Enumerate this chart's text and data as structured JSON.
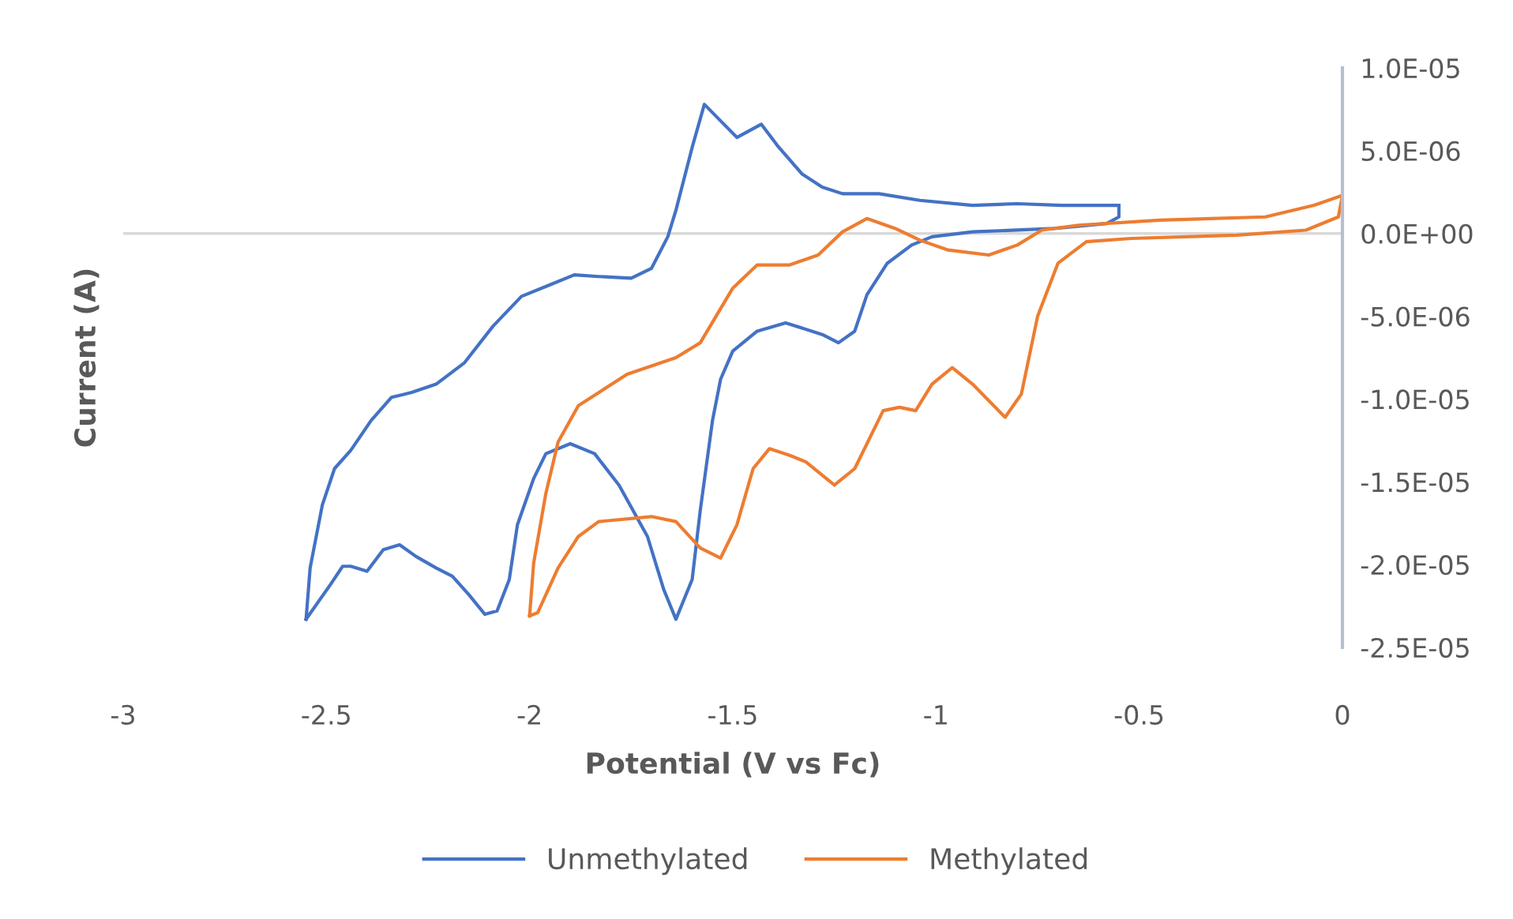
{
  "chart_data": {
    "type": "line",
    "xlabel": "Potential (V vs Fc)",
    "ylabel": "Current (A)",
    "xlim": [
      -3,
      0
    ],
    "xticks": [
      -3,
      -2.5,
      -2,
      -1.5,
      -1,
      -0.5,
      0
    ],
    "ylim": [
      -2.5e-05,
      1e-05
    ],
    "yticks": [
      {
        "value": 1e-05,
        "label": "1.0E-05"
      },
      {
        "value": 5e-06,
        "label": "5.0E-06"
      },
      {
        "value": 0,
        "label": "0.0E+00"
      },
      {
        "value": -5e-06,
        "label": "-5.0E-06"
      },
      {
        "value": -1e-05,
        "label": "-1.0E-05"
      },
      {
        "value": -1.5e-05,
        "label": "-1.5E-05"
      },
      {
        "value": -2e-05,
        "label": "-2.0E-05"
      },
      {
        "value": -2.5e-05,
        "label": "-2.5E-05"
      }
    ],
    "legend": "bottom",
    "ref_lines": [
      {
        "axis": "y",
        "value": 0,
        "color": "#d9d9d9"
      }
    ],
    "series": [
      {
        "name": "Unmethylated",
        "color": "#4472c4",
        "x": [
          -0.55,
          -0.55,
          -0.58,
          -0.71,
          -0.91,
          -1.01,
          -1.06,
          -1.12,
          -1.17,
          -1.2,
          -1.24,
          -1.28,
          -1.37,
          -1.44,
          -1.5,
          -1.53,
          -1.55,
          -1.58,
          -1.6,
          -1.64,
          -1.67,
          -1.71,
          -1.78,
          -1.84,
          -1.9,
          -1.96,
          -1.99,
          -2.03,
          -2.05,
          -2.08,
          -2.11,
          -2.15,
          -2.19,
          -2.23,
          -2.28,
          -2.32,
          -2.36,
          -2.4,
          -2.44,
          -2.46,
          -2.49,
          -2.55
        ],
        "values": [
          1.7e-06,
          1e-06,
          6e-07,
          3e-07,
          1e-07,
          -2e-07,
          -7e-07,
          -1.8e-06,
          -3.7e-06,
          -5.9e-06,
          -6.6e-06,
          -6.1e-06,
          -5.4e-06,
          -5.9e-06,
          -7.1e-06,
          -8.8e-06,
          -1.13e-05,
          -1.67e-05,
          -2.09e-05,
          -2.33e-05,
          -2.15e-05,
          -1.83e-05,
          -1.52e-05,
          -1.33e-05,
          -1.27e-05,
          -1.33e-05,
          -1.48e-05,
          -1.76e-05,
          -2.09e-05,
          -2.28e-05,
          -2.3e-05,
          -2.18e-05,
          -2.07e-05,
          -2.02e-05,
          -1.95e-05,
          -1.88e-05,
          -1.91e-05,
          -2.04e-05,
          -2.01e-05,
          -2.01e-05,
          -2.12e-05,
          -2.33e-05
        ]
      },
      {
        "color": "#4472c4",
        "x": [
          -2.55,
          -2.54,
          -2.51,
          -2.48,
          -2.44,
          -2.39,
          -2.34,
          -2.29,
          -2.23,
          -2.16,
          -2.09,
          -2.02,
          -1.95,
          -1.89,
          -1.83,
          -1.75,
          -1.7,
          -1.66,
          -1.64,
          -1.6,
          -1.57,
          -1.53,
          -1.49,
          -1.43,
          -1.39,
          -1.33,
          -1.28,
          -1.23,
          -1.14,
          -1.04,
          -0.91,
          -0.8,
          -0.69,
          -0.55
        ],
        "values": [
          -2.33e-05,
          -2.02e-05,
          -1.64e-05,
          -1.42e-05,
          -1.31e-05,
          -1.13e-05,
          -9.9e-06,
          -9.6e-06,
          -9.1e-06,
          -7.8e-06,
          -5.6e-06,
          -3.8e-06,
          -3.1e-06,
          -2.5e-06,
          -2.6e-06,
          -2.7e-06,
          -2.1e-06,
          -2e-07,
          1.4e-06,
          5.2e-06,
          7.8e-06,
          6.8e-06,
          5.8e-06,
          6.6e-06,
          5.3e-06,
          3.6e-06,
          2.8e-06,
          2.4e-06,
          2.4e-06,
          2e-06,
          1.7e-06,
          1.8e-06,
          1.7e-06,
          1.7e-06
        ]
      },
      {
        "name": "Methylated",
        "color": "#ed7d31",
        "x": [
          0,
          -0.01,
          -0.09,
          -0.26,
          -0.52,
          -0.63,
          -0.7,
          -0.75,
          -0.79,
          -0.83,
          -0.91,
          -0.96,
          -1.01,
          -1.05,
          -1.09,
          -1.13,
          -1.2,
          -1.25,
          -1.32,
          -1.36,
          -1.41,
          -1.45,
          -1.49,
          -1.53,
          -1.58,
          -1.64,
          -1.7,
          -1.83,
          -1.88,
          -1.93,
          -1.98,
          -2.0
        ],
        "values": [
          2.3e-06,
          1e-06,
          2e-07,
          -1e-07,
          -3e-07,
          -5e-07,
          -1.8e-06,
          -5e-06,
          -9.7e-06,
          -1.11e-05,
          -9.1e-06,
          -8.1e-06,
          -9.1e-06,
          -1.07e-05,
          -1.05e-05,
          -1.07e-05,
          -1.42e-05,
          -1.52e-05,
          -1.38e-05,
          -1.34e-05,
          -1.3e-05,
          -1.42e-05,
          -1.76e-05,
          -1.96e-05,
          -1.9e-05,
          -1.74e-05,
          -1.71e-05,
          -1.74e-05,
          -1.83e-05,
          -2.02e-05,
          -2.29e-05,
          -2.31e-05
        ]
      },
      {
        "color": "#ed7d31",
        "x": [
          -2.0,
          -1.99,
          -1.96,
          -1.93,
          -1.88,
          -1.76,
          -1.64,
          -1.58,
          -1.5,
          -1.44,
          -1.36,
          -1.29,
          -1.23,
          -1.17,
          -1.1,
          -1.04,
          -0.97,
          -0.87,
          -0.8,
          -0.74,
          -0.65,
          -0.45,
          -0.19,
          -0.07,
          0
        ],
        "values": [
          -2.31e-05,
          -1.99e-05,
          -1.57e-05,
          -1.26e-05,
          -1.04e-05,
          -8.5e-06,
          -7.5e-06,
          -6.6e-06,
          -3.3e-06,
          -1.9e-06,
          -1.9e-06,
          -1.3e-06,
          1e-07,
          9e-07,
          3e-07,
          -4e-07,
          -1e-06,
          -1.3e-06,
          -7e-07,
          2e-07,
          5e-07,
          8e-07,
          1e-06,
          1.7e-06,
          2.3e-06
        ]
      }
    ]
  }
}
